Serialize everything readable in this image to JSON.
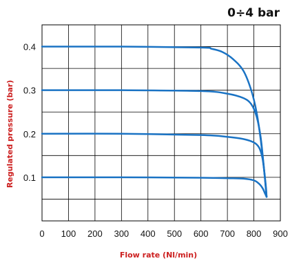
{
  "chart_data": {
    "type": "line",
    "title": "0÷4 bar",
    "xlabel": "Flow rate (Nl/min)",
    "ylabel": "Regulated pressure (bar)",
    "xlim": [
      0,
      900
    ],
    "ylim": [
      0,
      0.45
    ],
    "x_ticks": [
      "0",
      "100",
      "200",
      "300",
      "400",
      "500",
      "600",
      "700",
      "800",
      "900"
    ],
    "y_ticks": [
      "0.1",
      "0.2",
      "0.3",
      "0.4"
    ],
    "y_tick_values": [
      0.1,
      0.2,
      0.3,
      0.4
    ],
    "grid": true,
    "colors": {
      "line": "#1a73c4",
      "axis_label": "#cc1f1f",
      "grid": "#000000"
    },
    "series": [
      {
        "values": [
          [
            0,
            0.4
          ],
          [
            300,
            0.4
          ],
          [
            600,
            0.398
          ],
          [
            640,
            0.395
          ],
          [
            680,
            0.388
          ],
          [
            720,
            0.372
          ],
          [
            760,
            0.345
          ],
          [
            790,
            0.3
          ],
          [
            810,
            0.25
          ],
          [
            825,
            0.19
          ],
          [
            838,
            0.12
          ],
          [
            848,
            0.055
          ]
        ]
      },
      {
        "values": [
          [
            0,
            0.3
          ],
          [
            300,
            0.3
          ],
          [
            600,
            0.298
          ],
          [
            700,
            0.292
          ],
          [
            760,
            0.282
          ],
          [
            790,
            0.268
          ],
          [
            810,
            0.24
          ],
          [
            825,
            0.195
          ],
          [
            835,
            0.14
          ],
          [
            843,
            0.09
          ],
          [
            848,
            0.055
          ]
        ]
      },
      {
        "values": [
          [
            0,
            0.2
          ],
          [
            300,
            0.2
          ],
          [
            600,
            0.197
          ],
          [
            700,
            0.193
          ],
          [
            760,
            0.188
          ],
          [
            800,
            0.18
          ],
          [
            820,
            0.168
          ],
          [
            832,
            0.145
          ],
          [
            840,
            0.11
          ],
          [
            846,
            0.075
          ],
          [
            848,
            0.055
          ]
        ]
      },
      {
        "values": [
          [
            0,
            0.1
          ],
          [
            300,
            0.1
          ],
          [
            600,
            0.099
          ],
          [
            700,
            0.098
          ],
          [
            760,
            0.097
          ],
          [
            800,
            0.093
          ],
          [
            820,
            0.085
          ],
          [
            833,
            0.075
          ],
          [
            842,
            0.063
          ],
          [
            848,
            0.055
          ]
        ]
      }
    ]
  }
}
